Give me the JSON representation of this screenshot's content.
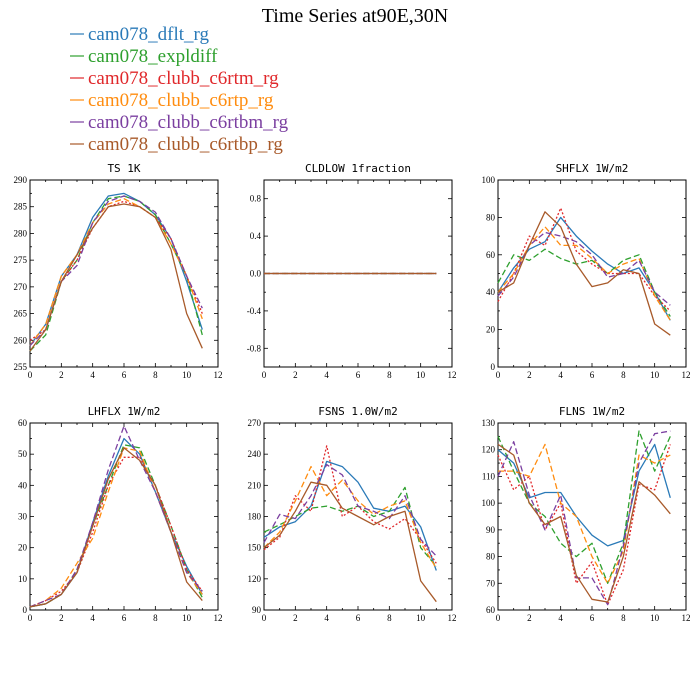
{
  "title": "Time Series at90E,30N",
  "legend": [
    {
      "name": "cam078_dflt_rg",
      "color": "#2a7ab8",
      "dash": "solid"
    },
    {
      "name": "cam078_expldiff",
      "color": "#2ea02e",
      "dash": "dashed"
    },
    {
      "name": "cam078_clubb_c6rtm_rg",
      "color": "#e0282b",
      "dash": "dotted"
    },
    {
      "name": "cam078_clubb_c6rtp_rg",
      "color": "#ff8c0f",
      "dash": "dashed"
    },
    {
      "name": "cam078_clubb_c6rtbm_rg",
      "color": "#7b3fa0",
      "dash": "dashed"
    },
    {
      "name": "cam078_clubb_c6rtbp_rg",
      "color": "#a85a2a",
      "dash": "solid"
    }
  ],
  "chart_data": [
    {
      "type": "line",
      "title": "TS  1K",
      "xlim": [
        0,
        12
      ],
      "ylim": [
        255,
        290
      ],
      "xticks": [
        0,
        2,
        4,
        6,
        8,
        10,
        12
      ],
      "yticks": [
        255,
        260,
        265,
        270,
        275,
        280,
        285,
        290
      ],
      "x": [
        0,
        1,
        2,
        3,
        4,
        5,
        6,
        7,
        8,
        9,
        10,
        11
      ],
      "series": [
        {
          "name": "cam078_dflt_rg",
          "values": [
            259,
            263,
            272,
            276,
            283,
            287,
            287.5,
            286,
            283.5,
            279,
            271,
            262
          ]
        },
        {
          "name": "cam078_expldiff",
          "values": [
            258,
            261,
            271,
            275,
            282,
            286.5,
            287,
            286,
            283.5,
            278,
            272,
            261
          ]
        },
        {
          "name": "cam078_clubb_c6rtm_rg",
          "values": [
            260,
            262,
            271,
            275,
            281,
            285,
            286,
            285,
            283,
            279,
            272,
            265
          ]
        },
        {
          "name": "cam078_clubb_c6rtp_rg",
          "values": [
            259,
            263,
            272,
            276,
            282,
            285.5,
            286.5,
            285,
            283,
            278,
            272,
            264
          ]
        },
        {
          "name": "cam078_clubb_c6rtbm_rg",
          "values": [
            259,
            262,
            271,
            274,
            282,
            286,
            287,
            286,
            284,
            279,
            272,
            266
          ]
        },
        {
          "name": "cam078_clubb_c6rtbp_rg",
          "values": [
            258,
            262,
            271,
            276,
            281,
            285,
            285.5,
            285,
            283,
            277,
            265,
            258.5
          ]
        }
      ]
    },
    {
      "type": "line",
      "title": "CLDLOW  1fraction",
      "xlim": [
        0,
        12
      ],
      "ylim": [
        -1,
        1
      ],
      "xticks": [
        0,
        2,
        4,
        6,
        8,
        10,
        12
      ],
      "yticks": [
        -0.8,
        -0.4,
        0.0,
        0.4,
        0.8
      ],
      "ytick_labels": [
        "-0.8",
        "-0.4",
        "0.0",
        "0.4",
        "0.8"
      ],
      "x": [
        0,
        1,
        2,
        3,
        4,
        5,
        6,
        7,
        8,
        9,
        10,
        11
      ],
      "series": [
        {
          "name": "cam078_dflt_rg",
          "values": [
            0,
            0,
            0,
            0,
            0,
            0,
            0,
            0,
            0,
            0,
            0,
            0
          ]
        },
        {
          "name": "cam078_expldiff",
          "values": [
            0,
            0,
            0,
            0,
            0,
            0,
            0,
            0,
            0,
            0,
            0,
            0
          ]
        },
        {
          "name": "cam078_clubb_c6rtm_rg",
          "values": [
            0,
            0,
            0,
            0,
            0,
            0,
            0,
            0,
            0,
            0,
            0,
            0
          ]
        },
        {
          "name": "cam078_clubb_c6rtp_rg",
          "values": [
            0,
            0,
            0,
            0,
            0,
            0,
            0,
            0,
            0,
            0,
            0,
            0
          ]
        },
        {
          "name": "cam078_clubb_c6rtbm_rg",
          "values": [
            0,
            0,
            0,
            0,
            0,
            0,
            0,
            0,
            0,
            0,
            0,
            0
          ]
        },
        {
          "name": "cam078_clubb_c6rtbp_rg",
          "values": [
            0,
            0,
            0,
            0,
            0,
            0,
            0,
            0,
            0,
            0,
            0,
            0
          ]
        }
      ]
    },
    {
      "type": "line",
      "title": "SHFLX  1W/m2",
      "xlim": [
        0,
        12
      ],
      "ylim": [
        0,
        100
      ],
      "xticks": [
        0,
        2,
        4,
        6,
        8,
        10,
        12
      ],
      "yticks": [
        0,
        20,
        40,
        60,
        80,
        100
      ],
      "x": [
        0,
        1,
        2,
        3,
        4,
        5,
        6,
        7,
        8,
        9,
        10,
        11
      ],
      "series": [
        {
          "name": "cam078_dflt_rg",
          "values": [
            40,
            53,
            63,
            67,
            80,
            70,
            62,
            55,
            50,
            53,
            40,
            25
          ]
        },
        {
          "name": "cam078_expldiff",
          "values": [
            45,
            60,
            57,
            63,
            58,
            55,
            57,
            50,
            57,
            60,
            40,
            27
          ]
        },
        {
          "name": "cam078_clubb_c6rtm_rg",
          "values": [
            35,
            50,
            70,
            65,
            85,
            62,
            55,
            50,
            50,
            50,
            38,
            30
          ]
        },
        {
          "name": "cam078_clubb_c6rtp_rg",
          "values": [
            40,
            50,
            65,
            75,
            65,
            65,
            58,
            50,
            55,
            58,
            38,
            25
          ]
        },
        {
          "name": "cam078_clubb_c6rtbm_rg",
          "values": [
            38,
            48,
            65,
            72,
            70,
            67,
            60,
            48,
            50,
            57,
            40,
            33
          ]
        },
        {
          "name": "cam078_clubb_c6rtbp_rg",
          "values": [
            40,
            45,
            65,
            83,
            75,
            55,
            43,
            45,
            52,
            50,
            23,
            17
          ]
        }
      ]
    },
    {
      "type": "line",
      "title": "LHFLX  1W/m2",
      "xlim": [
        0,
        12
      ],
      "ylim": [
        0,
        60
      ],
      "xticks": [
        0,
        2,
        4,
        6,
        8,
        10,
        12
      ],
      "yticks": [
        0,
        10,
        20,
        30,
        40,
        50,
        60
      ],
      "x": [
        0,
        1,
        2,
        3,
        4,
        5,
        6,
        7,
        8,
        9,
        10,
        11
      ],
      "series": [
        {
          "name": "cam078_dflt_rg",
          "values": [
            1,
            2,
            5,
            12,
            28,
            43,
            55,
            50,
            38,
            25,
            14,
            5
          ]
        },
        {
          "name": "cam078_expldiff",
          "values": [
            1,
            2,
            5,
            13,
            27,
            40,
            53,
            52,
            40,
            27,
            13,
            4
          ]
        },
        {
          "name": "cam078_clubb_c6rtm_rg",
          "values": [
            1,
            3,
            6,
            12,
            25,
            40,
            49,
            49,
            40,
            27,
            13,
            6
          ]
        },
        {
          "name": "cam078_clubb_c6rtp_rg",
          "values": [
            1,
            3,
            7,
            15,
            23,
            38,
            52,
            51,
            38,
            25,
            12,
            5
          ]
        },
        {
          "name": "cam078_clubb_c6rtbm_rg",
          "values": [
            1,
            3,
            5,
            13,
            28,
            45,
            59,
            48,
            38,
            25,
            12,
            6
          ]
        },
        {
          "name": "cam078_clubb_c6rtbp_rg",
          "values": [
            1,
            2,
            5,
            12,
            27,
            42,
            52,
            48,
            40,
            25,
            9,
            3
          ]
        }
      ]
    },
    {
      "type": "line",
      "title": "FSNS  1.0W/m2",
      "xlim": [
        0,
        12
      ],
      "ylim": [
        90,
        270
      ],
      "xticks": [
        0,
        2,
        4,
        6,
        8,
        10,
        12
      ],
      "yticks": [
        90,
        120,
        150,
        180,
        210,
        240,
        270
      ],
      "x": [
        0,
        1,
        2,
        3,
        4,
        5,
        6,
        7,
        8,
        9,
        10,
        11
      ],
      "series": [
        {
          "name": "cam078_dflt_rg",
          "values": [
            160,
            170,
            175,
            190,
            233,
            228,
            213,
            188,
            185,
            190,
            170,
            128
          ]
        },
        {
          "name": "cam078_expldiff",
          "values": [
            165,
            172,
            180,
            188,
            190,
            185,
            190,
            180,
            185,
            208,
            150,
            132
          ]
        },
        {
          "name": "cam078_clubb_c6rtm_rg",
          "values": [
            148,
            160,
            200,
            185,
            248,
            180,
            190,
            175,
            168,
            178,
            158,
            135
          ]
        },
        {
          "name": "cam078_clubb_c6rtp_rg",
          "values": [
            150,
            165,
            195,
            228,
            200,
            215,
            195,
            182,
            190,
            195,
            155,
            130
          ]
        },
        {
          "name": "cam078_clubb_c6rtbm_rg",
          "values": [
            155,
            182,
            178,
            200,
            230,
            220,
            190,
            185,
            178,
            200,
            158,
            142
          ]
        },
        {
          "name": "cam078_clubb_c6rtbp_rg",
          "values": [
            150,
            162,
            185,
            213,
            210,
            188,
            180,
            172,
            180,
            185,
            118,
            98
          ]
        }
      ]
    },
    {
      "type": "line",
      "title": "FLNS  1W/m2",
      "xlim": [
        0,
        12
      ],
      "ylim": [
        60,
        130
      ],
      "xticks": [
        0,
        2,
        4,
        6,
        8,
        10,
        12
      ],
      "yticks": [
        60,
        70,
        80,
        90,
        100,
        110,
        120,
        130
      ],
      "x": [
        0,
        1,
        2,
        3,
        4,
        5,
        6,
        7,
        8,
        9,
        10,
        11
      ],
      "series": [
        {
          "name": "cam078_dflt_rg",
          "values": [
            120,
            115,
            102,
            104,
            104,
            95,
            88,
            84,
            86,
            112,
            122,
            102
          ]
        },
        {
          "name": "cam078_expldiff",
          "values": [
            125,
            112,
            100,
            95,
            85,
            80,
            85,
            70,
            85,
            127,
            112,
            125
          ]
        },
        {
          "name": "cam078_clubb_c6rtm_rg",
          "values": [
            118,
            105,
            110,
            90,
            100,
            70,
            78,
            62,
            75,
            107,
            105,
            122
          ]
        },
        {
          "name": "cam078_clubb_c6rtp_rg",
          "values": [
            112,
            112,
            110,
            122,
            100,
            95,
            80,
            70,
            82,
            118,
            115,
            118
          ]
        },
        {
          "name": "cam078_clubb_c6rtbm_rg",
          "values": [
            110,
            123,
            103,
            90,
            103,
            72,
            72,
            62,
            84,
            115,
            126,
            127
          ]
        },
        {
          "name": "cam078_clubb_c6rtbp_rg",
          "values": [
            122,
            118,
            100,
            92,
            95,
            73,
            64,
            63,
            80,
            108,
            103,
            96
          ]
        }
      ]
    }
  ]
}
